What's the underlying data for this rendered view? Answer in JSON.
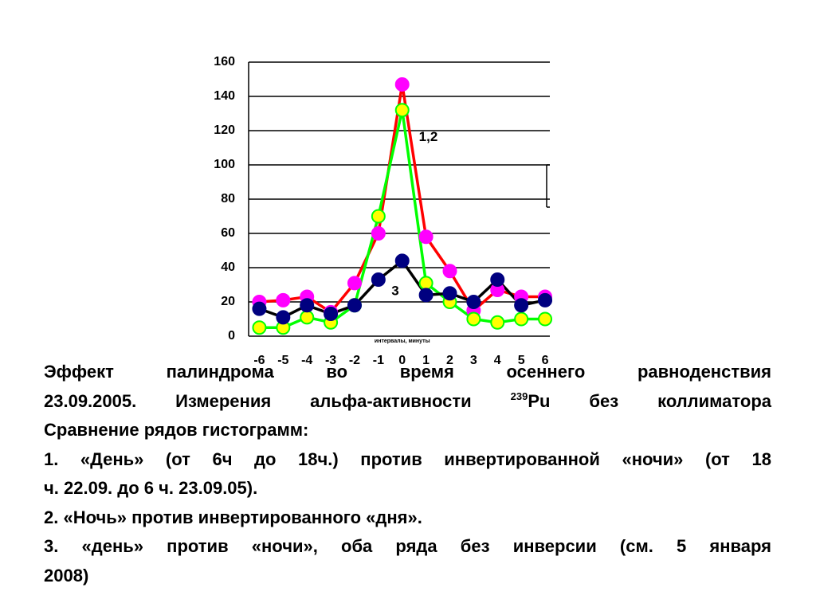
{
  "chart_data": {
    "type": "line",
    "x": [
      -6,
      -5,
      -4,
      -3,
      -2,
      -1,
      0,
      1,
      2,
      3,
      4,
      5,
      6
    ],
    "xlim": [
      -6.45,
      6.2
    ],
    "xticks": [
      -6,
      -5,
      -4,
      -3,
      -2,
      -1,
      0,
      1,
      2,
      3,
      4,
      5,
      6
    ],
    "ylim": [
      0,
      160
    ],
    "yticks": [
      0,
      20,
      40,
      60,
      80,
      100,
      120,
      140,
      160
    ],
    "grid": true,
    "x_label": "интервалы, минуты",
    "series": [
      {
        "color": "#ff0000",
        "marker_color": "#ff00ff",
        "values": [
          20,
          21,
          23,
          14,
          31,
          60,
          147,
          58,
          38,
          15,
          27,
          23,
          23
        ]
      },
      {
        "color": "#00ff00",
        "marker_color": "#ffff00",
        "values": [
          5,
          5,
          11,
          8,
          18,
          70,
          132,
          31,
          20,
          10,
          8,
          10,
          10
        ]
      },
      {
        "color": "#000000",
        "marker_color": "#000080",
        "values": [
          16,
          11,
          18,
          13,
          18,
          33,
          44,
          24,
          25,
          20,
          33,
          18,
          21
        ]
      }
    ],
    "annotations": [
      "1,2",
      "3"
    ]
  },
  "caption": {
    "line1": "Эффект палиндрома во время осеннего равноденствия",
    "line2_before": "23.09.2005. Измерения альфа-активности ",
    "line2_sup": "239",
    "line2_after": "Pu без коллиматора",
    "line3": "Сравнение рядов гистограмм:",
    "line4": "1. «День» (от 6ч до 18ч.) против  инвертированной «ночи» (от 18",
    "line5": "ч. 22.09. до 6 ч. 23.09.05).",
    "line6": "2. «Ночь» против инвертированного «дня».",
    "line7": "3. «день» против  «ночи», оба ряда без инверсии  (см. 5 января",
    "line8": "2008)"
  }
}
